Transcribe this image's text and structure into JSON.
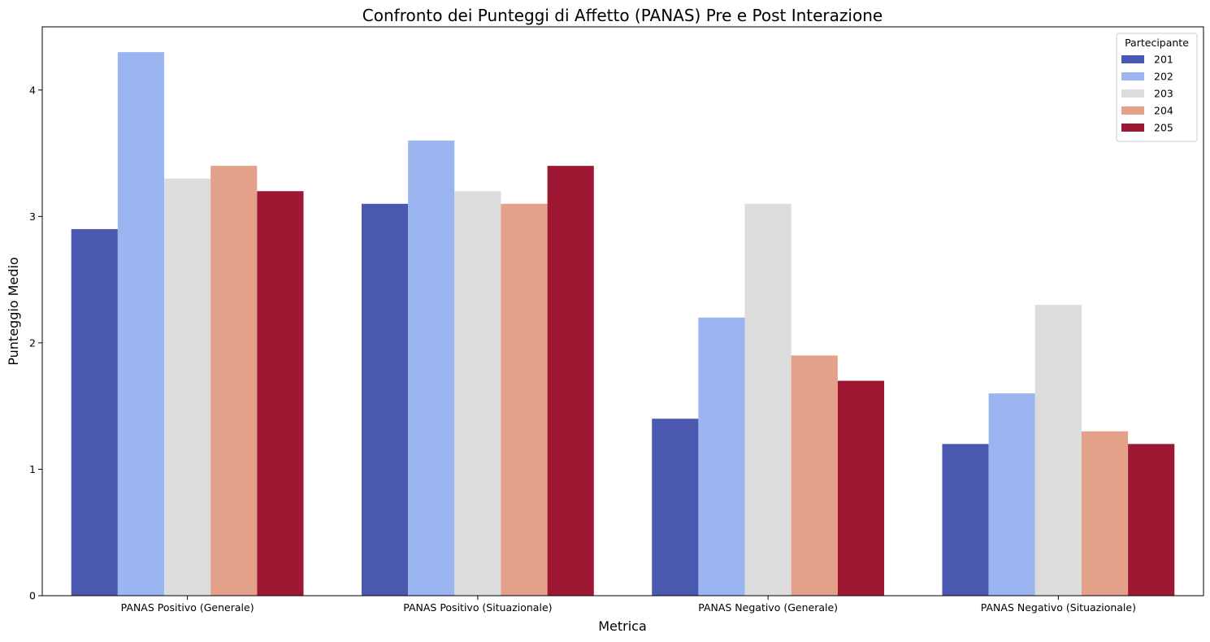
{
  "chart_data": {
    "type": "bar",
    "title": "Confronto dei Punteggi di Affetto (PANAS) Pre e Post Interazione",
    "xlabel": "Metrica",
    "ylabel": "Punteggio Medio",
    "ylim": [
      0,
      4.5
    ],
    "yticks": [
      0,
      1,
      2,
      3,
      4
    ],
    "grid": false,
    "legend_position": "top-right",
    "legend_title": "Partecipante",
    "categories": [
      "PANAS Positivo (Generale)",
      "PANAS Positivo (Situazionale)",
      "PANAS Negativo (Generale)",
      "PANAS Negativo (Situazionale)"
    ],
    "series": [
      {
        "name": "201",
        "color": "#4a58b0",
        "values": [
          2.9,
          3.1,
          1.4,
          1.2
        ]
      },
      {
        "name": "202",
        "color": "#9bb5f0",
        "values": [
          4.3,
          3.6,
          2.2,
          1.6
        ]
      },
      {
        "name": "203",
        "color": "#dcdcdc",
        "values": [
          3.3,
          3.2,
          3.1,
          2.3
        ]
      },
      {
        "name": "204",
        "color": "#e4a18a",
        "values": [
          3.4,
          3.1,
          1.9,
          1.3
        ]
      },
      {
        "name": "205",
        "color": "#9e1834",
        "values": [
          3.2,
          3.4,
          1.7,
          1.2
        ]
      }
    ]
  }
}
